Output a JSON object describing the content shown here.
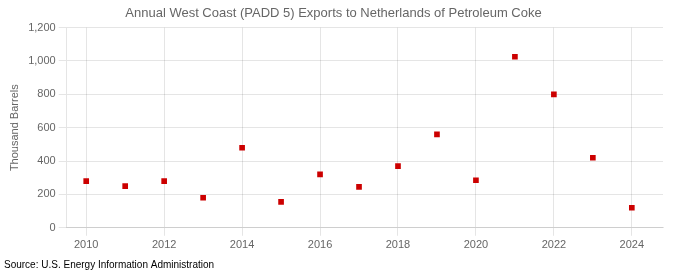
{
  "chart_data": {
    "type": "scatter",
    "title": "Annual West Coast (PADD 5) Exports to Netherlands of Petroleum Coke",
    "ylabel": "Thousand Barrels",
    "annotation": "Source: U.S. Energy Information Administration",
    "x": [
      2010,
      2011,
      2012,
      2013,
      2014,
      2015,
      2016,
      2017,
      2018,
      2019,
      2020,
      2021,
      2022,
      2023,
      2024
    ],
    "values": [
      280,
      250,
      280,
      180,
      480,
      155,
      320,
      245,
      370,
      560,
      285,
      1025,
      800,
      420,
      120
    ],
    "color": "#CC0000",
    "marker": "square",
    "xlim": [
      2009.5,
      2024.8
    ],
    "xticks": [
      2010,
      2012,
      2014,
      2016,
      2018,
      2020,
      2022,
      2024
    ],
    "ylim": [
      0,
      1200
    ],
    "yticks": [
      0,
      200,
      400,
      600,
      800,
      {
        "value": 1000,
        "label": "1,000"
      },
      {
        "value": 1200,
        "label": "1,200"
      }
    ],
    "grid": true
  }
}
